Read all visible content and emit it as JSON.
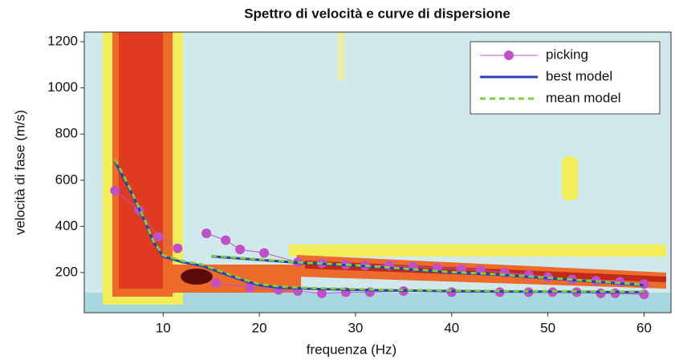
{
  "chart_data": {
    "type": "line",
    "title": "Spettro di velocità e curve di dispersione",
    "x_label": "frequenza (Hz)",
    "y_label": "velocità di fase (m/s)",
    "xlim": [
      1.8,
      62.8
    ],
    "ylim": [
      26,
      1242
    ],
    "xticks": [
      10,
      20,
      30,
      40,
      50,
      60
    ],
    "yticks": [
      200,
      400,
      600,
      800,
      1000,
      1200
    ],
    "legend": "upper right",
    "series": [
      {
        "name": "picking",
        "color": "#c050c8",
        "marker": "circle",
        "x": [
          5,
          7.5,
          9.5,
          11.5,
          null,
          14.5,
          16.5,
          18,
          20.5,
          24,
          26.5,
          29,
          31,
          33.5,
          36,
          38.5,
          41,
          43,
          45.5,
          48,
          50,
          52.5,
          55,
          57.5,
          60,
          null,
          15.5,
          19,
          22,
          24,
          26.5,
          29,
          31.5,
          35,
          40,
          45,
          48,
          50.5,
          53,
          55.5,
          57,
          60
        ],
        "values": [
          555,
          470,
          355,
          305,
          null,
          370,
          340,
          300,
          285,
          245,
          240,
          235,
          230,
          230,
          225,
          220,
          215,
          210,
          200,
          190,
          180,
          170,
          165,
          160,
          150,
          null,
          155,
          135,
          125,
          120,
          110,
          115,
          115,
          120,
          115,
          115,
          115,
          115,
          115,
          110,
          110,
          105
        ]
      },
      {
        "name": "best model",
        "color": "#2b3fb0",
        "dash": false,
        "x": [
          5,
          6,
          7,
          8,
          9,
          10,
          12,
          14,
          16,
          18,
          20,
          22,
          25,
          30,
          35,
          40,
          45,
          50,
          55,
          60,
          null,
          15,
          20,
          25,
          30,
          35,
          40,
          45,
          50,
          55,
          60
        ],
        "values": [
          680,
          600,
          520,
          430,
          330,
          270,
          245,
          230,
          200,
          170,
          145,
          135,
          130,
          125,
          122,
          120,
          118,
          117,
          116,
          115,
          null,
          270,
          255,
          240,
          230,
          215,
          200,
          190,
          175,
          160,
          145
        ]
      },
      {
        "name": "mean model",
        "color": "#7ccf3a",
        "dash": true,
        "x": [
          5,
          6,
          7,
          8,
          9,
          10,
          12,
          14,
          16,
          18,
          20,
          22,
          25,
          30,
          35,
          40,
          45,
          50,
          55,
          60,
          null,
          15,
          20,
          25,
          30,
          35,
          40,
          45,
          50,
          55,
          60
        ],
        "values": [
          690,
          610,
          525,
          435,
          335,
          275,
          250,
          235,
          205,
          175,
          150,
          140,
          133,
          128,
          124,
          122,
          120,
          119,
          118,
          117,
          null,
          272,
          257,
          242,
          232,
          217,
          202,
          192,
          177,
          162,
          147
        ]
      }
    ]
  }
}
